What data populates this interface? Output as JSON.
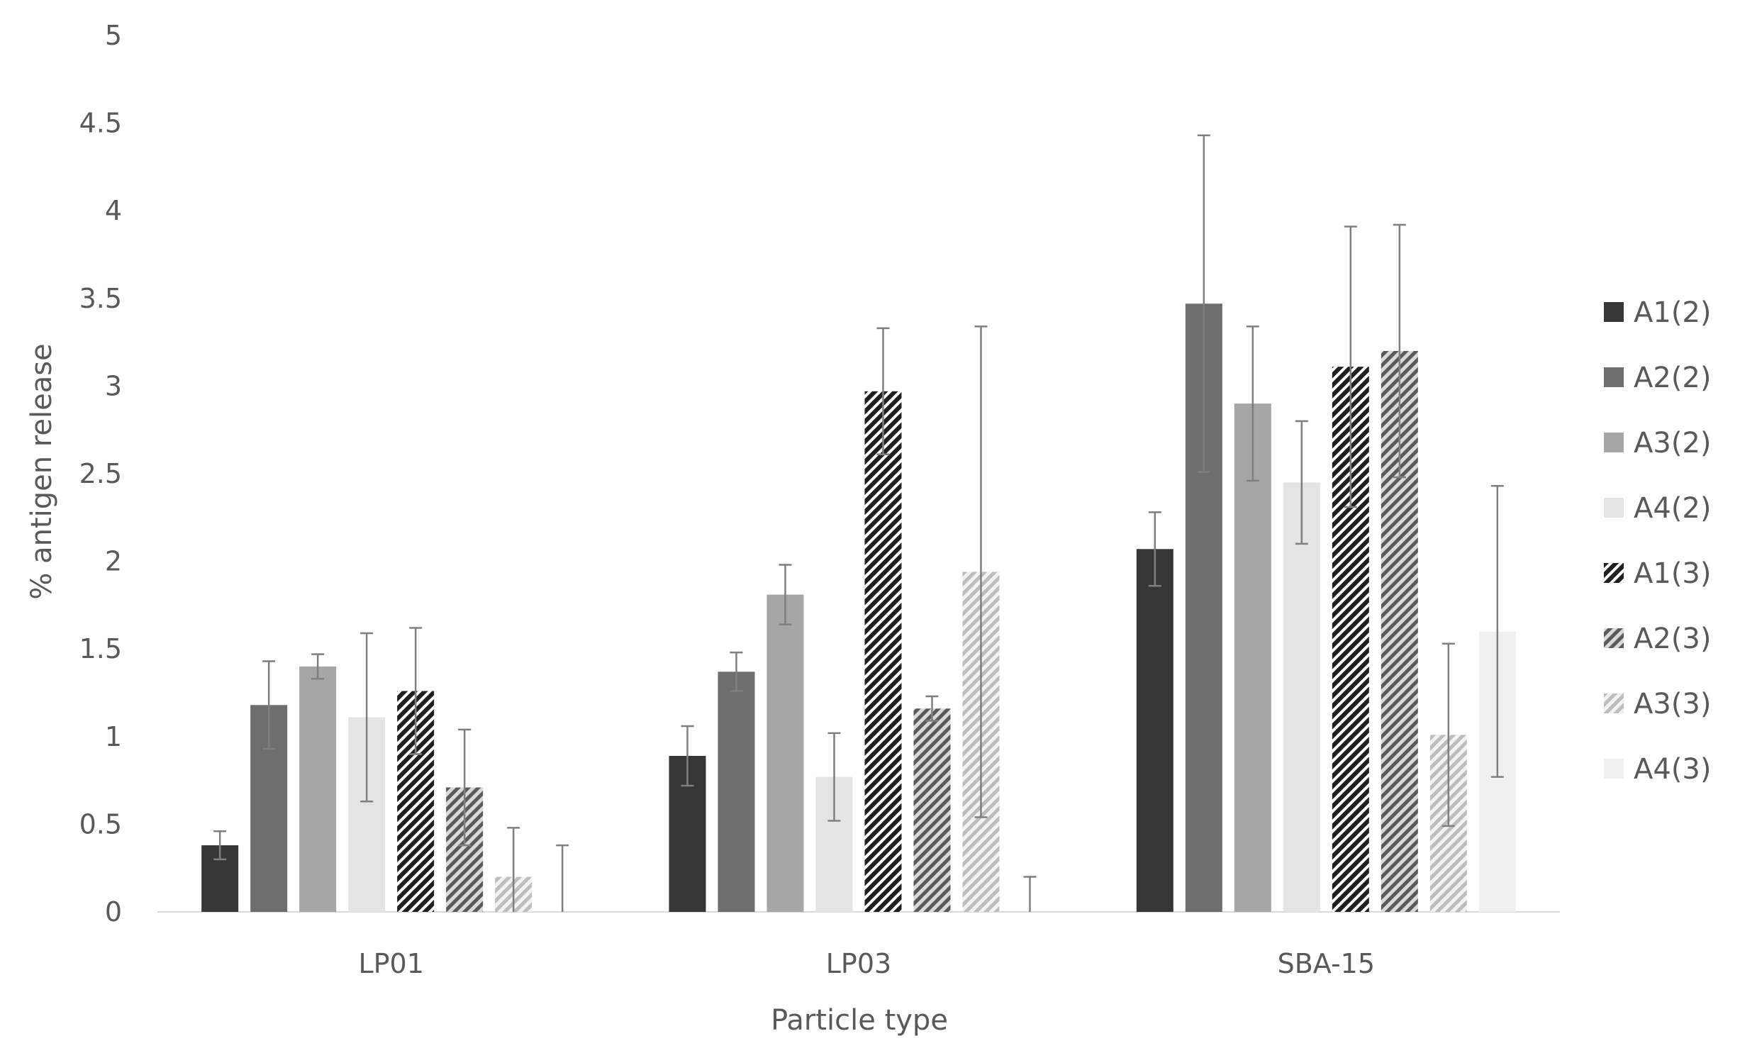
{
  "chart_data": {
    "type": "bar",
    "title": "",
    "xlabel": "Particle type",
    "ylabel": "% antigen release",
    "categories": [
      "LP01",
      "LP03",
      "SBA-15"
    ],
    "ylim": [
      0,
      5
    ],
    "yticks": [
      "0",
      "0.5",
      "1",
      "1.5",
      "2",
      "2.5",
      "3",
      "3.5",
      "4",
      "4.5",
      "5"
    ],
    "grid": false,
    "legend_position": "right",
    "series": [
      {
        "name": "A1(2)",
        "color": "#363636",
        "pattern": "solid",
        "values": [
          0.38,
          0.89,
          2.07
        ],
        "errors": [
          0.08,
          0.17,
          0.21
        ]
      },
      {
        "name": "A2(2)",
        "color": "#6e6e6e",
        "pattern": "solid",
        "values": [
          1.18,
          1.37,
          3.47
        ],
        "errors": [
          0.25,
          0.11,
          0.96
        ]
      },
      {
        "name": "A3(2)",
        "color": "#a6a6a6",
        "pattern": "solid",
        "values": [
          1.4,
          1.81,
          2.9
        ],
        "errors": [
          0.07,
          0.17,
          0.44
        ]
      },
      {
        "name": "A4(2)",
        "color": "#e4e4e4",
        "pattern": "solid",
        "values": [
          1.11,
          0.77,
          2.45
        ],
        "errors": [
          0.48,
          0.25,
          0.35
        ]
      },
      {
        "name": "A1(3)",
        "color": "#2b2b2b",
        "pattern": "hatch-dense",
        "values": [
          1.26,
          2.97,
          3.11
        ],
        "errors": [
          0.36,
          0.36,
          0.8
        ]
      },
      {
        "name": "A2(3)",
        "color": "#6b6b6b",
        "pattern": "hatch-medium",
        "values": [
          0.71,
          1.16,
          3.2
        ],
        "errors": [
          0.33,
          0.07,
          0.72
        ]
      },
      {
        "name": "A3(3)",
        "color": "#bcbcbc",
        "pattern": "hatch-light",
        "values": [
          0.2,
          1.94,
          1.01
        ],
        "errors": [
          0.28,
          1.4,
          0.52
        ]
      },
      {
        "name": "A4(3)",
        "color": "#f0f0f0",
        "pattern": "solid",
        "values": [
          0.0,
          0.0,
          1.6
        ],
        "errors": [
          0.38,
          0.2,
          0.83
        ]
      }
    ]
  }
}
